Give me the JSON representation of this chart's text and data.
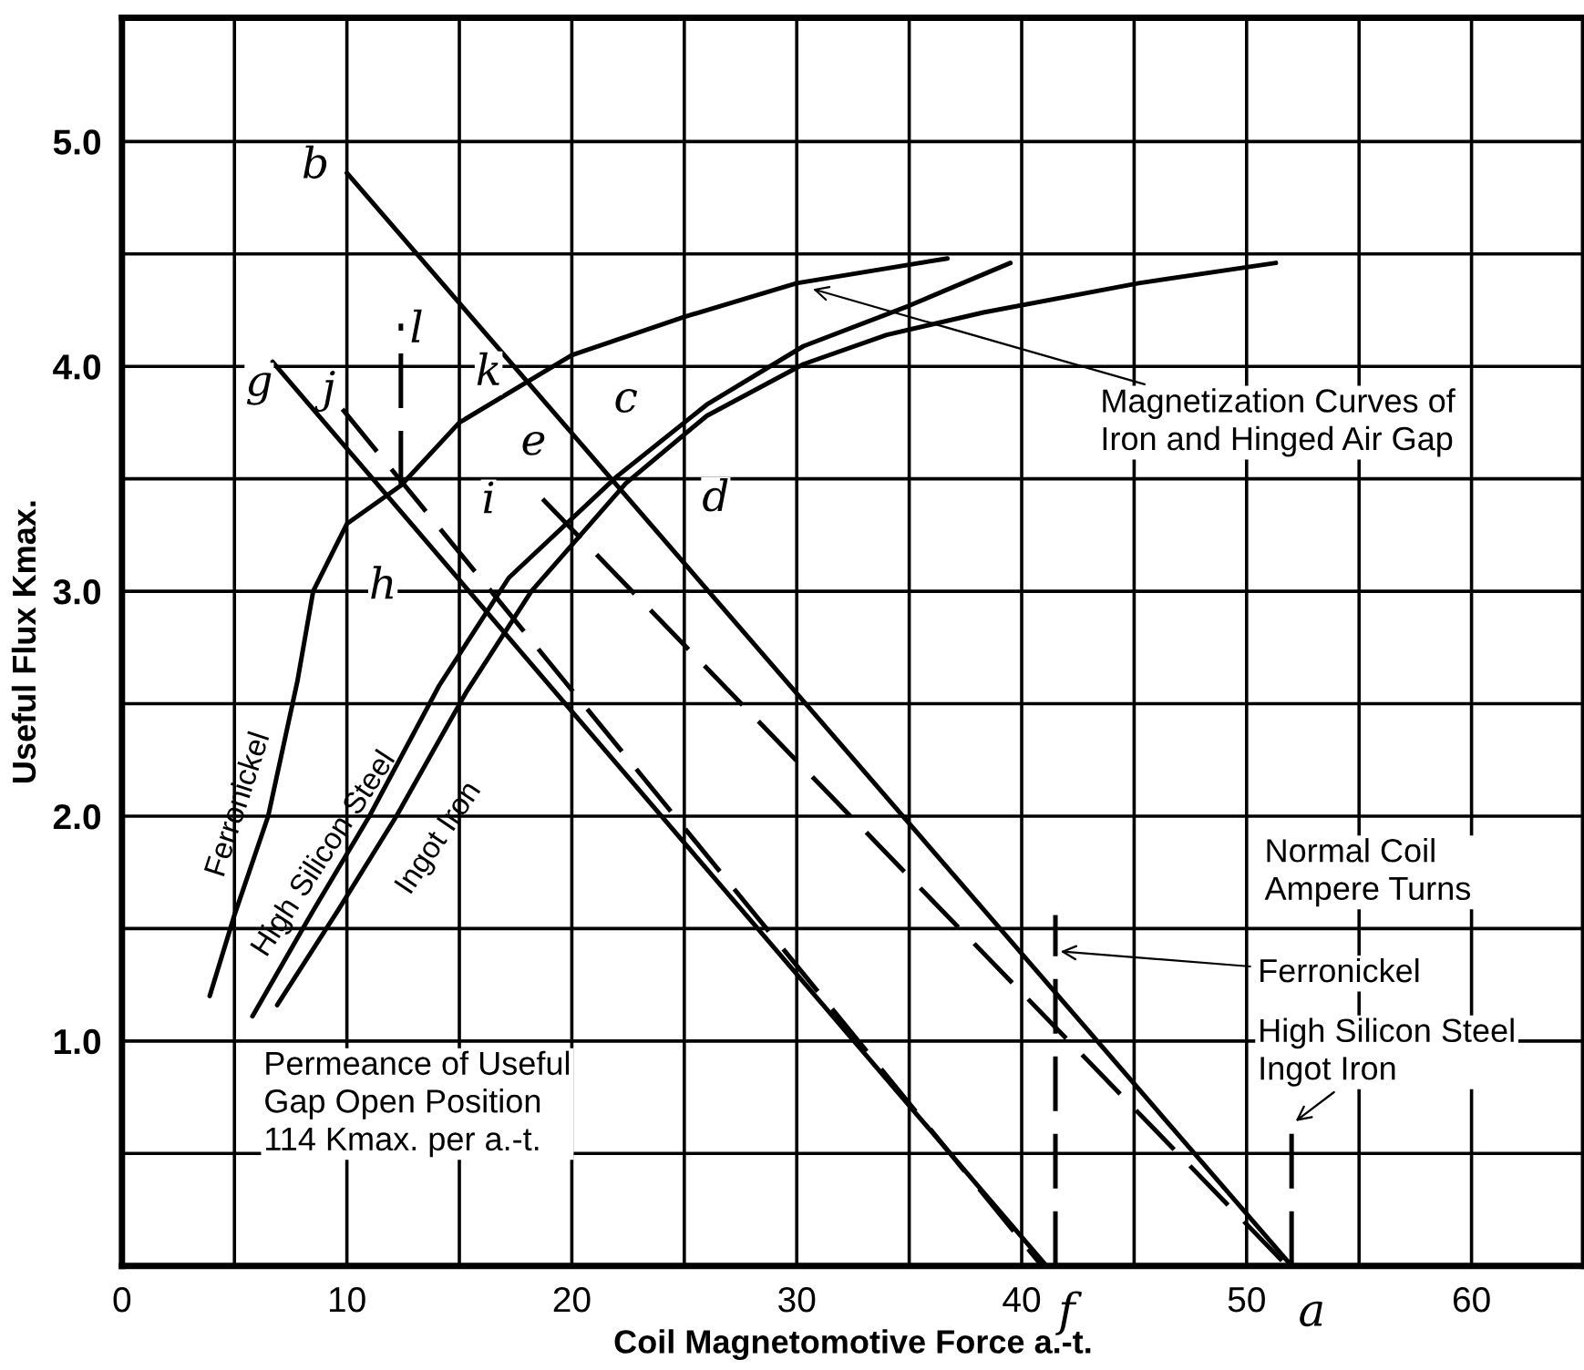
{
  "chart_data": {
    "type": "line",
    "xlabel": "Coil Magnetomotive Force a.-t.",
    "ylabel": "Useful Flux Kmax.",
    "xlim": [
      0,
      65
    ],
    "ylim": [
      0,
      5.55
    ],
    "xticks": [
      0,
      {
        "value": 5,
        "label": null
      },
      10,
      {
        "value": 15,
        "label": null
      },
      20,
      {
        "value": 25,
        "label": null
      },
      30,
      {
        "value": 35,
        "label": null
      },
      40,
      {
        "value": 45,
        "label": null
      },
      50,
      {
        "value": 55,
        "label": null
      },
      60
    ],
    "yticks": [
      {
        "value": 0.5,
        "label": null
      },
      {
        "value": 1.0,
        "label": "1.0"
      },
      {
        "value": 1.5,
        "label": null
      },
      {
        "value": 2.0,
        "label": "2.0"
      },
      {
        "value": 2.5,
        "label": null
      },
      {
        "value": 3.0,
        "label": "3.0"
      },
      {
        "value": 3.5,
        "label": null
      },
      {
        "value": 4.0,
        "label": "4.0"
      },
      {
        "value": 4.5,
        "label": null
      },
      {
        "value": 5.0,
        "label": "5.0"
      }
    ],
    "grid": true,
    "legend": false,
    "marker": "none",
    "series": [
      {
        "name": "Ferronickel",
        "color": "#000000",
        "line_style": "solid",
        "x": [
          3.9,
          5.0,
          6.5,
          7.8,
          8.5,
          10.0,
          12.4,
          15.0,
          20.0,
          25.0,
          30.0,
          36.7
        ],
        "values": [
          1.2,
          1.56,
          2.0,
          2.6,
          3.0,
          3.3,
          3.47,
          3.75,
          4.05,
          4.22,
          4.37,
          4.48
        ]
      },
      {
        "name": "High Silicon Steel",
        "color": "#000000",
        "line_style": "solid",
        "x": [
          5.8,
          8.5,
          11.0,
          14.1,
          17.2,
          22.0,
          26.0,
          30.3,
          35.0,
          39.5
        ],
        "values": [
          1.11,
          1.58,
          2.0,
          2.58,
          3.06,
          3.51,
          3.83,
          4.09,
          4.27,
          4.46
        ]
      },
      {
        "name": "Ingot Iron",
        "color": "#000000",
        "line_style": "solid",
        "x": [
          6.9,
          9.6,
          12.2,
          15.3,
          18.2,
          22.4,
          26.0,
          30.3,
          34.0,
          38.3,
          45.2,
          51.3
        ],
        "values": [
          1.16,
          1.58,
          2.0,
          2.55,
          3.0,
          3.48,
          3.78,
          4.01,
          4.14,
          4.24,
          4.37,
          4.46
        ]
      },
      {
        "color": "#000000",
        "line_style": "solid",
        "x": [
          10.0,
          52.0
        ],
        "values": [
          4.86,
          0
        ]
      },
      {
        "color": "#000000",
        "line_style": "dashed",
        "x": [
          18.7,
          51.8
        ],
        "values": [
          3.41,
          0
        ]
      },
      {
        "color": "#000000",
        "line_style": "solid",
        "x": [
          6.7,
          41.1
        ],
        "values": [
          4.02,
          0
        ]
      },
      {
        "color": "#000000",
        "line_style": "dashed",
        "x": [
          9.8,
          40.9
        ],
        "values": [
          3.81,
          0
        ]
      },
      {
        "color": "#000000",
        "line_style": "dashed",
        "x": [
          41.5,
          41.5
        ],
        "values": [
          0,
          1.56
        ]
      },
      {
        "color": "#000000",
        "line_style": "dashed",
        "x": [
          52.0,
          52.0
        ],
        "values": [
          0,
          0.63
        ]
      },
      {
        "color": "#000000",
        "line_style": "dashed",
        "x": [
          12.4,
          12.4
        ],
        "values": [
          3.47,
          4.19
        ]
      }
    ],
    "annotations": [
      {
        "text": "Magnetization Curves of\nIron and Hinged Air Gap",
        "x": 30.5,
        "y": 4.35
      },
      "Permeance of Useful\nGap Open Position\n114 Kmax. per a.-t.",
      "Normal Coil\nAmpere Turns",
      {
        "text": "Ferronickel",
        "x": 41.5,
        "y": 1.4
      },
      {
        "text": "High Silicon Steel\nIngot Iron",
        "x": 52.0,
        "y": 0.63
      },
      {
        "text": "b",
        "x": 8.6,
        "y": 4.89
      },
      {
        "text": "l",
        "x": 13.1,
        "y": 4.16
      },
      {
        "text": "k",
        "x": 16.3,
        "y": 3.97
      },
      {
        "text": "g",
        "x": 6.1,
        "y": 3.92
      },
      {
        "text": "j",
        "x": 9.2,
        "y": 3.89
      },
      {
        "text": "c",
        "x": 22.4,
        "y": 3.85
      },
      {
        "text": "e",
        "x": 18.3,
        "y": 3.66
      },
      {
        "text": "d",
        "x": 26.4,
        "y": 3.41
      },
      {
        "text": "i",
        "x": 16.3,
        "y": 3.4
      },
      {
        "text": "h",
        "x": 11.6,
        "y": 3.02
      },
      {
        "text": "f",
        "x": 41.1,
        "y": 0
      },
      {
        "text": "a",
        "x": 52.0,
        "y": 0
      }
    ]
  }
}
